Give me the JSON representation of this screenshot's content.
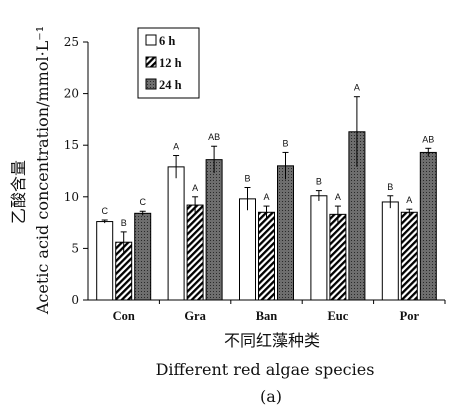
{
  "chart_data": {
    "type": "bar",
    "title": "",
    "ylabel_cn": "乙酸含量",
    "ylabel": "Acetic acid concentration/mmol·L⁻¹",
    "xlabel_cn": "不同红藻种类",
    "xlabel": "Different red algae species",
    "panel_label": "(a)",
    "categories": [
      "Con",
      "Gra",
      "Ban",
      "Euc",
      "Por"
    ],
    "ylim": [
      0,
      25
    ],
    "yticks": [
      0,
      5,
      10,
      15,
      20,
      25
    ],
    "grid": false,
    "legend_position": "top-left",
    "series": [
      {
        "name": "6 h",
        "values": [
          7.6,
          12.9,
          9.8,
          10.1,
          9.5
        ],
        "errors": [
          0.15,
          1.1,
          1.1,
          0.5,
          0.6
        ],
        "sig": [
          "C",
          "A",
          "B",
          "B",
          "B"
        ]
      },
      {
        "name": "12 h",
        "values": [
          5.6,
          9.2,
          8.5,
          8.3,
          8.5
        ],
        "errors": [
          1.0,
          0.8,
          0.6,
          0.8,
          0.3
        ],
        "sig": [
          "B",
          "A",
          "A",
          "A",
          "A"
        ]
      },
      {
        "name": "24 h",
        "values": [
          8.4,
          13.6,
          13.0,
          16.3,
          14.3
        ],
        "errors": [
          0.2,
          1.3,
          1.3,
          3.4,
          0.4
        ],
        "sig": [
          "C",
          "AB",
          "B",
          "A",
          "AB"
        ]
      }
    ]
  }
}
